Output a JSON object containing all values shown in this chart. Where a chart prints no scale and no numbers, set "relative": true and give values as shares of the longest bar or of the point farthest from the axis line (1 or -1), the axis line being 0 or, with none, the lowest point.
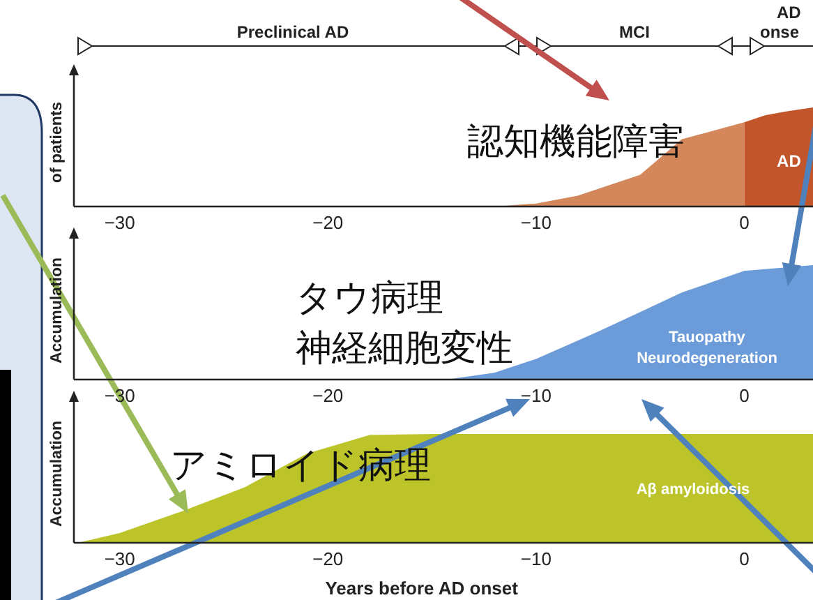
{
  "chart_data": [
    {
      "type": "area",
      "relative": true,
      "ylabel": "of patients",
      "xlim": [
        -32.2,
        3.3
      ],
      "xticks": [
        {
          "value": -30,
          "label": "−30"
        },
        {
          "value": -20,
          "label": "−20"
        },
        {
          "value": -10,
          "label": "−10"
        },
        {
          "value": 0,
          "label": "0"
        }
      ],
      "series": [
        {
          "color": "#d4875a",
          "x": [
            -12,
            -10,
            -8,
            -5,
            -3,
            0
          ],
          "values": [
            0,
            0.03,
            0.11,
            0.32,
            0.68,
            0.85
          ]
        },
        {
          "name": "AD",
          "color": "#c2552a",
          "x": [
            0,
            1,
            2,
            3.3
          ],
          "values": [
            0.85,
            0.92,
            0.96,
            1
          ]
        }
      ],
      "annotations": [
        "Preclinical AD",
        "MCI",
        "AD",
        "onse",
        "認知機能障害"
      ]
    },
    {
      "type": "area",
      "relative": true,
      "ylabel": "Accumulation",
      "xlim": [
        -32.2,
        3.3
      ],
      "xticks": [
        {
          "value": -30,
          "label": "−30"
        },
        {
          "value": -20,
          "label": "−20"
        },
        {
          "value": -10,
          "label": "−10"
        },
        {
          "value": 0,
          "label": "0"
        }
      ],
      "series": [
        {
          "color": "#6b9bd8",
          "x": [
            -14.3,
            -12,
            -10,
            -7,
            -5,
            -3,
            0,
            3.3
          ],
          "values": [
            0,
            0.06,
            0.18,
            0.42,
            0.59,
            0.76,
            0.95,
            1
          ]
        }
      ],
      "annotations": [
        "タウ病理",
        "神経細胞変性",
        "Tauopathy",
        "Neurodegeneration"
      ]
    },
    {
      "type": "area",
      "relative": true,
      "ylabel": "Accumulation",
      "xlabel": "Years before AD onset",
      "xlim": [
        -32.2,
        3.3
      ],
      "xticks": [
        {
          "value": -30,
          "label": "−30"
        },
        {
          "value": -20,
          "label": "−20"
        },
        {
          "value": -10,
          "label": "−10"
        },
        {
          "value": 0,
          "label": "0"
        }
      ],
      "series": [
        {
          "color": "#bcc42a",
          "x": [
            -32,
            -30,
            -27,
            -24,
            -21,
            -18,
            -15,
            -10,
            0,
            3.3
          ],
          "values": [
            0,
            0.09,
            0.29,
            0.51,
            0.82,
            0.99,
            1,
            1,
            1,
            1
          ]
        }
      ],
      "annotations": [
        "アミロイド病理",
        "Aβ amyloidosis"
      ]
    }
  ]
}
